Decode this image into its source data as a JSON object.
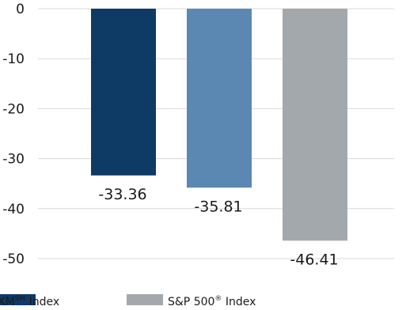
{
  "chart_data": {
    "type": "bar",
    "categories": [
      "",
      "",
      ""
    ],
    "values": [
      -33.36,
      -35.81,
      -46.41
    ],
    "value_labels": [
      "-33.36",
      "-35.81",
      "-46.41"
    ],
    "colors": [
      "#0e3a66",
      "#5b88b3",
      "#a3a8ad"
    ],
    "ylim": [
      -50,
      0
    ],
    "yticks": [
      0,
      -10,
      -20,
      -30,
      -40,
      -50
    ],
    "ytick_labels": [
      "0",
      "-10",
      "-20",
      "-30",
      "-40",
      "-50"
    ],
    "grid": true,
    "legend_position": "bottom",
    "legend": [
      {
        "name": "XM",
        "sup": "SM",
        "suffix": " Index",
        "color": "#0e3a66"
      },
      {
        "name": "S&P 500",
        "sup": "®",
        "suffix": " Index",
        "color": "#a3a8ad"
      }
    ],
    "title": "",
    "xlabel": "",
    "ylabel": ""
  }
}
